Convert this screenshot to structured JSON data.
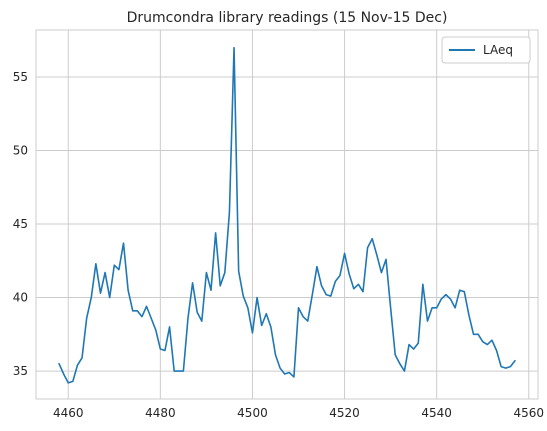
{
  "chart_data": {
    "type": "line",
    "title": "Drumcondra library readings (15 Nov-15 Dec)",
    "xlabel": "",
    "ylabel": "",
    "xlim": [
      4453,
      4562
    ],
    "ylim": [
      33.1,
      58.2
    ],
    "xticks": [
      4460,
      4480,
      4500,
      4520,
      4540,
      4560
    ],
    "yticks": [
      35,
      40,
      45,
      50,
      55
    ],
    "grid": true,
    "legend_position": "upper right",
    "series": [
      {
        "name": "LAeq",
        "color": "#1f77b4",
        "x": [
          4458,
          4459,
          4460,
          4461,
          4462,
          4463,
          4464,
          4465,
          4466,
          4467,
          4468,
          4469,
          4470,
          4471,
          4472,
          4473,
          4474,
          4475,
          4476,
          4477,
          4478,
          4479,
          4480,
          4481,
          4482,
          4483,
          4484,
          4485,
          4486,
          4487,
          4488,
          4489,
          4490,
          4491,
          4492,
          4493,
          4494,
          4495,
          4496,
          4497,
          4498,
          4499,
          4500,
          4501,
          4502,
          4503,
          4504,
          4505,
          4506,
          4507,
          4508,
          4509,
          4510,
          4511,
          4512,
          4513,
          4514,
          4515,
          4516,
          4517,
          4518,
          4519,
          4520,
          4521,
          4522,
          4523,
          4524,
          4525,
          4526,
          4527,
          4528,
          4529,
          4530,
          4531,
          4532,
          4533,
          4534,
          4535,
          4536,
          4537,
          4538,
          4539,
          4540,
          4541,
          4542,
          4543,
          4544,
          4545,
          4546,
          4547,
          4548,
          4549,
          4550,
          4551,
          4552,
          4553,
          4554,
          4555,
          4556,
          4557
        ],
        "values": [
          35.5,
          34.8,
          34.2,
          34.3,
          35.4,
          35.9,
          38.6,
          40.0,
          42.3,
          40.3,
          41.7,
          40.0,
          42.2,
          41.9,
          43.7,
          40.5,
          39.1,
          39.1,
          38.7,
          39.4,
          38.6,
          37.8,
          36.5,
          36.4,
          38.0,
          35.0,
          35.0,
          35.0,
          38.6,
          41.0,
          39.0,
          38.4,
          41.7,
          40.5,
          44.4,
          40.8,
          41.7,
          45.8,
          57.0,
          41.8,
          40.1,
          39.3,
          37.6,
          40.0,
          38.1,
          38.9,
          38.0,
          36.1,
          35.2,
          34.8,
          34.9,
          34.6,
          39.3,
          38.7,
          38.4,
          40.2,
          42.1,
          40.8,
          40.2,
          40.1,
          41.1,
          41.5,
          43.0,
          41.6,
          40.6,
          40.9,
          40.4,
          43.4,
          44.0,
          42.9,
          41.7,
          42.6,
          39.3,
          36.1,
          35.5,
          35.0,
          36.8,
          36.5,
          36.9,
          40.9,
          38.4,
          39.3,
          39.3,
          39.9,
          40.2,
          39.9,
          39.3,
          40.5,
          40.4,
          38.8,
          37.5,
          37.5,
          37.0,
          36.8,
          37.1,
          36.4,
          35.3,
          35.2,
          35.3,
          35.7
        ]
      }
    ]
  }
}
